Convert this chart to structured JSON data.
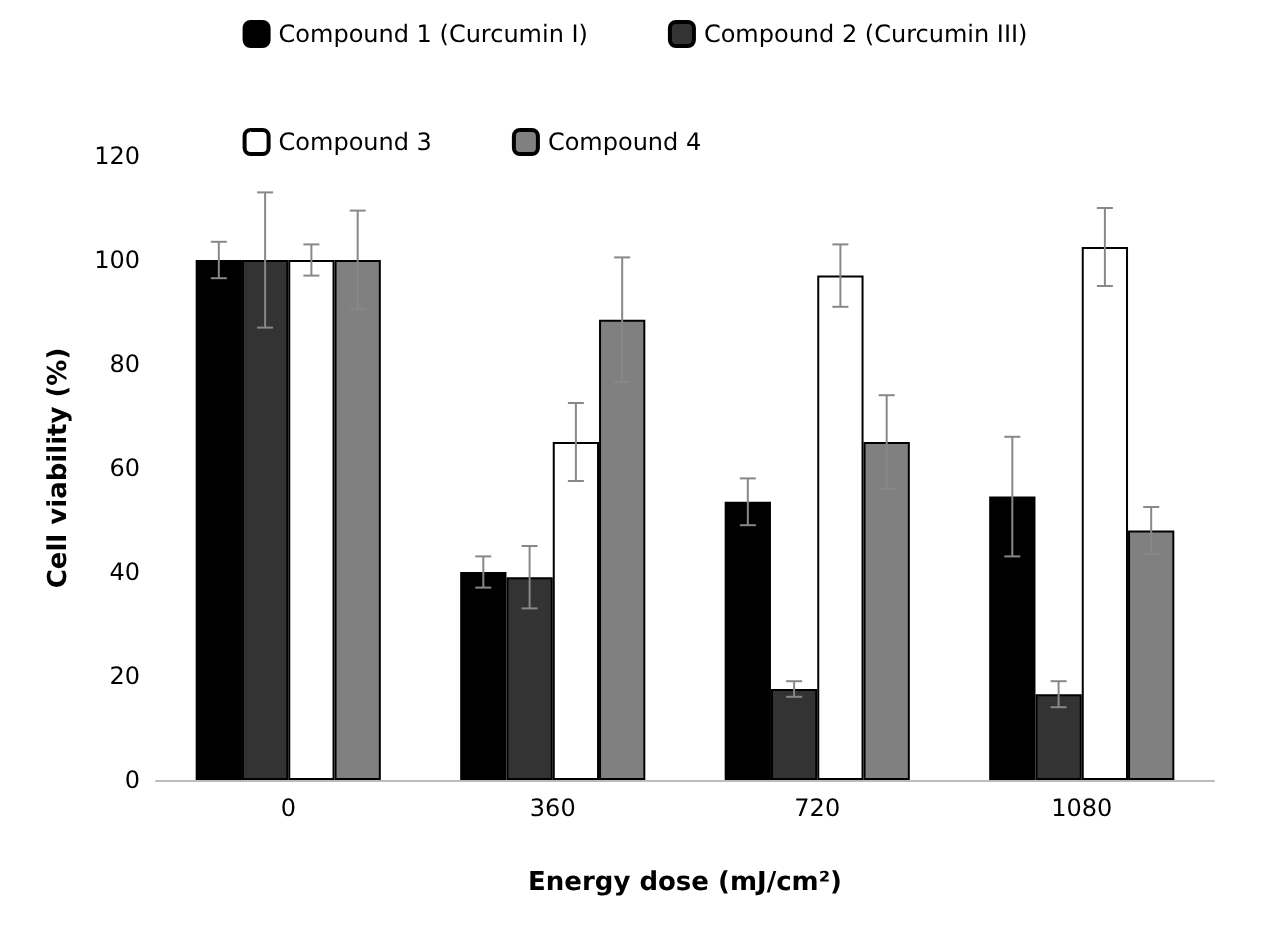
{
  "chart_data": {
    "type": "bar",
    "xlabel": "Energy dose (mJ/cm²)",
    "ylabel": "Cell viability (%)",
    "categories": [
      "0",
      "360",
      "720",
      "1080"
    ],
    "series": [
      {
        "name": "Compound 1 (Curcumin I)",
        "color": "#000000",
        "values": [
          100,
          40,
          53.5,
          54.5
        ],
        "errors": [
          3.5,
          3,
          4.5,
          11.5
        ]
      },
      {
        "name": "Compound 2 (Curcumin III)",
        "color": "#333333",
        "values": [
          100,
          39,
          17.5,
          16.5
        ],
        "errors": [
          13,
          6,
          1.5,
          2.5
        ]
      },
      {
        "name": "Compound 3",
        "color": "#ffffff",
        "values": [
          100,
          65,
          97,
          102.5
        ],
        "errors": [
          3,
          7.5,
          6,
          7.5
        ]
      },
      {
        "name": "Compound 4",
        "color": "#808080",
        "values": [
          100,
          88.5,
          65,
          48
        ],
        "errors": [
          9.5,
          12,
          9,
          4.5
        ]
      }
    ],
    "ylim": [
      0,
      120
    ],
    "yticks": [
      0,
      20,
      40,
      60,
      80,
      100,
      120
    ],
    "grid": false,
    "legend": "top"
  }
}
